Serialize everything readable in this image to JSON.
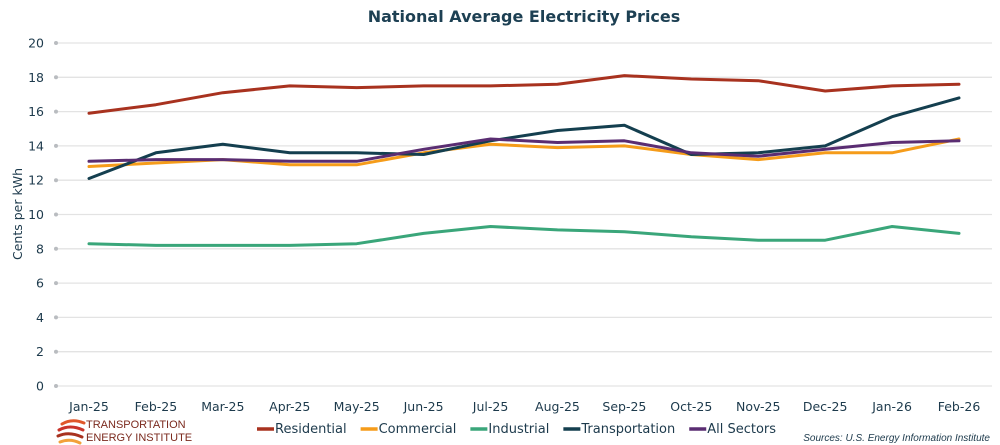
{
  "chart_data": {
    "type": "line",
    "title": "National Average Electricity Prices",
    "xlabel": "",
    "ylabel": "Cents per kWh",
    "ylim": [
      0,
      20
    ],
    "yticks": [
      0,
      2,
      4,
      6,
      8,
      10,
      12,
      14,
      16,
      18,
      20
    ],
    "grid": true,
    "legend_position": "bottom",
    "categories": [
      "Jan-25",
      "Feb-25",
      "Mar-25",
      "Apr-25",
      "May-25",
      "Jun-25",
      "Jul-25",
      "Aug-25",
      "Sep-25",
      "Oct-25",
      "Nov-25",
      "Dec-25",
      "Jan-26",
      "Feb-26"
    ],
    "series": [
      {
        "name": "Residential",
        "color": "#a8321f",
        "values": [
          15.9,
          16.4,
          17.1,
          17.5,
          17.4,
          17.5,
          17.5,
          17.6,
          18.1,
          17.9,
          17.8,
          17.2,
          17.5,
          17.6
        ]
      },
      {
        "name": "Commercial",
        "color": "#f59c1a",
        "values": [
          12.8,
          13.0,
          13.2,
          12.9,
          12.9,
          13.6,
          14.1,
          13.9,
          14.0,
          13.5,
          13.2,
          13.6,
          13.6,
          14.4
        ]
      },
      {
        "name": "Industrial",
        "color": "#3aa67a",
        "values": [
          8.3,
          8.2,
          8.2,
          8.2,
          8.3,
          8.9,
          9.3,
          9.1,
          9.0,
          8.7,
          8.5,
          8.5,
          9.3,
          8.9
        ]
      },
      {
        "name": "Transportation",
        "color": "#143f4f",
        "values": [
          12.1,
          13.6,
          14.1,
          13.6,
          13.6,
          13.5,
          14.3,
          14.9,
          15.2,
          13.5,
          13.6,
          14.0,
          15.7,
          16.8
        ]
      },
      {
        "name": "All Sectors",
        "color": "#5a2d72",
        "values": [
          13.1,
          13.2,
          13.2,
          13.1,
          13.1,
          13.8,
          14.4,
          14.2,
          14.3,
          13.6,
          13.4,
          13.8,
          14.2,
          14.3
        ]
      }
    ],
    "source": "Sources:  U.S. Energy Information Institute"
  },
  "branding": {
    "logo_line1": "TRANSPORTATION",
    "logo_line2": "ENERGY INSTITUTE"
  }
}
